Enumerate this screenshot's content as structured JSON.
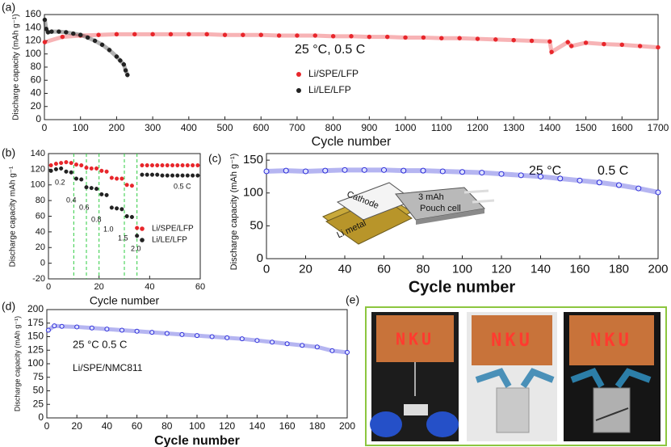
{
  "chart_data": [
    {
      "type": "scatter",
      "panel_label": "(a)",
      "xlabel": "Cycle number",
      "ylabel": "Discharge capacity (mAh g⁻¹)",
      "xlim": [
        0,
        1700
      ],
      "ylim": [
        0,
        160
      ],
      "xticks": [
        0,
        100,
        200,
        300,
        400,
        500,
        600,
        700,
        800,
        900,
        1000,
        1100,
        1200,
        1300,
        1400,
        1500,
        1600,
        1700
      ],
      "yticks": [
        0,
        20,
        40,
        60,
        80,
        100,
        120,
        140,
        160
      ],
      "annotations": [
        "25 °C, 0.5 C"
      ],
      "series": [
        {
          "name": "Li/SPE/LFP",
          "color": "#e8262b",
          "x": [
            1,
            50,
            100,
            150,
            200,
            250,
            300,
            350,
            400,
            450,
            500,
            550,
            600,
            650,
            700,
            750,
            800,
            850,
            900,
            950,
            1000,
            1050,
            1100,
            1150,
            1200,
            1250,
            1300,
            1350,
            1400,
            1405,
            1450,
            1460,
            1500,
            1550,
            1600,
            1650,
            1700
          ],
          "values": [
            118,
            126,
            128,
            129,
            130,
            130,
            130,
            130,
            130,
            130,
            129,
            129,
            129,
            128,
            128,
            128,
            127,
            127,
            126,
            126,
            125,
            125,
            124,
            124,
            123,
            122,
            121,
            120,
            119,
            103,
            118,
            112,
            117,
            115,
            114,
            112,
            110
          ]
        },
        {
          "name": "Li/LE/LFP",
          "color": "#222222",
          "x": [
            1,
            5,
            10,
            20,
            40,
            60,
            80,
            100,
            120,
            140,
            160,
            180,
            200,
            210,
            220,
            225,
            230
          ],
          "values": [
            152,
            138,
            133,
            134,
            134,
            133,
            131,
            129,
            125,
            120,
            114,
            106,
            96,
            90,
            84,
            75,
            68
          ]
        }
      ]
    },
    {
      "type": "scatter",
      "panel_label": "(b)",
      "xlabel": "Cycle number",
      "ylabel": "Discharge capacity mAh g⁻¹",
      "xlim": [
        0,
        60
      ],
      "ylim": [
        -20,
        140
      ],
      "xticks": [
        0,
        20,
        40,
        60
      ],
      "yticks": [
        -20,
        0,
        20,
        40,
        60,
        80,
        100,
        120,
        140
      ],
      "dividers": [
        10,
        15,
        20,
        30,
        35
      ],
      "divider_color": "#2ecc40",
      "annotations": [
        "0.2",
        "0.4",
        "0.6",
        "0.8",
        "1.0",
        "1.5",
        "2.0",
        "0.5 C"
      ],
      "series": [
        {
          "name": "Li/SPE/LFP",
          "color": "#e8262b",
          "x": [
            1,
            3,
            5,
            7,
            9,
            11,
            13,
            15,
            17,
            19,
            21,
            23,
            25,
            27,
            29,
            31,
            33,
            35,
            37,
            39,
            41,
            43,
            45,
            47,
            49,
            51,
            53,
            55,
            57,
            59
          ],
          "values": [
            125,
            127,
            128,
            129,
            128,
            126,
            125,
            122,
            121,
            121,
            118,
            117,
            109,
            108,
            108,
            100,
            99,
            45,
            125,
            125,
            125,
            125,
            125,
            125,
            125,
            125,
            125,
            125,
            125,
            125
          ]
        },
        {
          "name": "Li/LE/LFP",
          "color": "#222222",
          "x": [
            1,
            3,
            5,
            7,
            9,
            11,
            13,
            15,
            17,
            19,
            21,
            23,
            25,
            27,
            29,
            31,
            33,
            35,
            37,
            39,
            41,
            43,
            45,
            47,
            49,
            51,
            53,
            55,
            57,
            59
          ],
          "values": [
            118,
            120,
            121,
            117,
            116,
            108,
            107,
            97,
            96,
            95,
            88,
            87,
            71,
            70,
            69,
            60,
            59,
            35,
            113,
            113,
            113,
            113,
            112,
            112,
            112,
            112,
            112,
            112,
            112,
            112
          ]
        }
      ]
    },
    {
      "type": "scatter",
      "panel_label": "(c)",
      "xlabel": "Cycle number",
      "ylabel": "Discharge capacity (mAh g⁻¹)",
      "xlim": [
        0,
        200
      ],
      "ylim": [
        0,
        160
      ],
      "xticks": [
        0,
        20,
        40,
        60,
        80,
        100,
        120,
        140,
        160,
        180,
        200
      ],
      "yticks": [
        0,
        50,
        100,
        150
      ],
      "annotations": [
        "25 °C",
        "0.5 C",
        "Cathode",
        "3 mAh",
        "Pouch cell",
        "Li metal"
      ],
      "series": [
        {
          "color": "#2a2ad8",
          "x": [
            0,
            10,
            20,
            30,
            40,
            50,
            60,
            70,
            80,
            90,
            100,
            110,
            120,
            130,
            140,
            150,
            160,
            170,
            180,
            190,
            200
          ],
          "values": [
            133,
            134,
            133,
            134,
            135,
            135,
            135,
            134,
            134,
            133,
            132,
            131,
            129,
            127,
            125,
            122,
            119,
            116,
            112,
            107,
            101
          ]
        }
      ]
    },
    {
      "type": "scatter",
      "panel_label": "(d)",
      "xlabel": "Cycle number",
      "ylabel": "Discharge capacity (mAh g⁻¹)",
      "xlim": [
        0,
        200
      ],
      "ylim": [
        0,
        200
      ],
      "xticks": [
        0,
        20,
        40,
        60,
        80,
        100,
        120,
        140,
        160,
        180,
        200
      ],
      "yticks": [
        0,
        25,
        50,
        75,
        100,
        125,
        150,
        175,
        200
      ],
      "annotations": [
        "25 °C 0.5 C",
        "Li/SPE/NMC811"
      ],
      "series": [
        {
          "color": "#2a2ad8",
          "x": [
            1,
            5,
            10,
            20,
            30,
            40,
            50,
            60,
            70,
            80,
            90,
            100,
            110,
            120,
            130,
            140,
            150,
            160,
            170,
            180,
            190,
            200
          ],
          "values": [
            162,
            170,
            169,
            168,
            166,
            164,
            162,
            160,
            158,
            156,
            154,
            152,
            150,
            148,
            146,
            143,
            140,
            137,
            134,
            131,
            124,
            121
          ]
        }
      ]
    }
  ],
  "photo_panel": {
    "panel_label": "(e)",
    "photos": [
      "NKU",
      "NKU",
      "NKU"
    ]
  }
}
